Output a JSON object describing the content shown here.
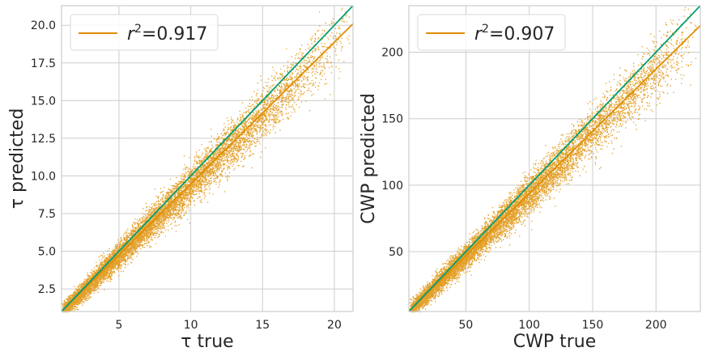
{
  "colors": {
    "scatter": "#de8f05",
    "fit_line": "#de8f05",
    "identity_line": "#029e73"
  },
  "chart_data": [
    {
      "type": "scatter",
      "xlabel": "τ true",
      "ylabel": "τ predicted",
      "xlim": [
        1.0,
        21.3
      ],
      "ylim": [
        1.0,
        21.3
      ],
      "xticks": [
        5,
        10,
        15,
        20
      ],
      "xtick_labels": [
        "5",
        "10",
        "15",
        "20"
      ],
      "yticks": [
        2.5,
        5.0,
        7.5,
        10.0,
        12.5,
        15.0,
        17.5,
        20.0
      ],
      "ytick_labels": [
        "2.5",
        "5.0",
        "7.5",
        "10.0",
        "12.5",
        "15.0",
        "17.5",
        "20.0"
      ],
      "grid": true,
      "legend_placement": "upper-left",
      "legend": {
        "symbol": "r",
        "sup": "2",
        "text": "=0.917"
      },
      "fit_line": {
        "x": [
          1.0,
          21.3
        ],
        "y": [
          1.0,
          20.1
        ]
      },
      "identity_line": {
        "x": [
          1.0,
          21.3
        ],
        "y": [
          1.0,
          21.3
        ]
      }
    },
    {
      "type": "scatter",
      "xlabel": "CWP true",
      "ylabel": "CWP predicted",
      "xlim": [
        5,
        235
      ],
      "ylim": [
        5,
        235
      ],
      "xticks": [
        50,
        100,
        150,
        200
      ],
      "xtick_labels": [
        "50",
        "100",
        "150",
        "200"
      ],
      "yticks": [
        50,
        100,
        150,
        200
      ],
      "ytick_labels": [
        "50",
        "100",
        "150",
        "200"
      ],
      "grid": true,
      "legend_placement": "upper-left",
      "legend": {
        "symbol": "r",
        "sup": "2",
        "text": "=0.907"
      },
      "fit_line": {
        "x": [
          5,
          235
        ],
        "y": [
          5,
          220
        ]
      },
      "identity_line": {
        "x": [
          5,
          235
        ],
        "y": [
          5,
          235
        ]
      }
    }
  ]
}
